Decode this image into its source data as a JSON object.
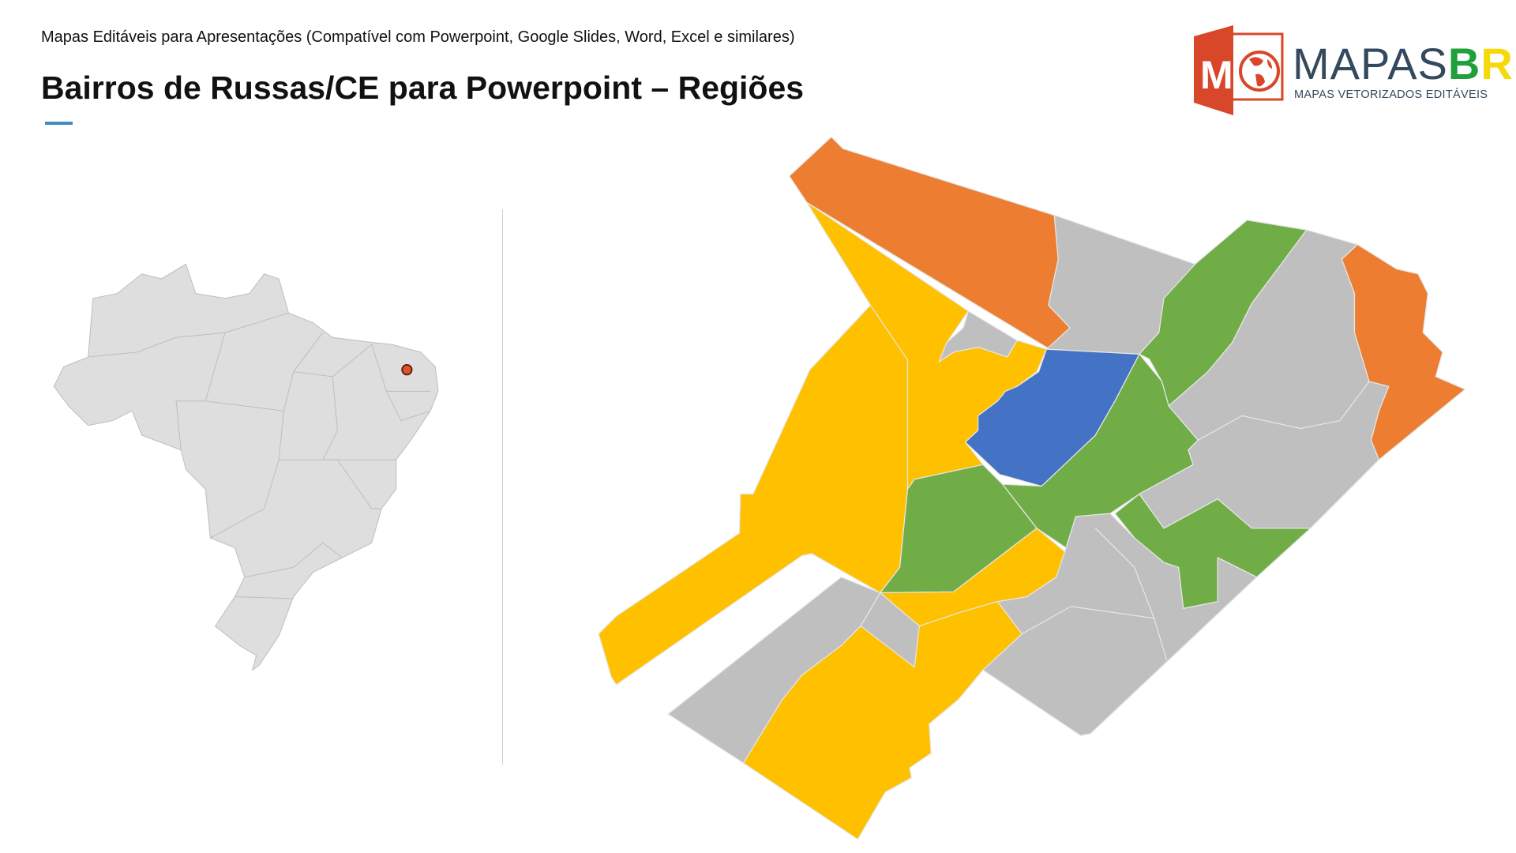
{
  "header": {
    "subtitle": "Mapas Editáveis para Apresentações (Compatível com Powerpoint, Google Slides, Word, Excel e similares)",
    "title": "Bairros de Russas/CE para Powerpoint – Regiões"
  },
  "logo": {
    "word_main": "MAPAS",
    "word_b": "B",
    "word_r": "R",
    "tagline": "MAPAS VETORIZADOS EDITÁVEIS",
    "icon": "presentation-globe-icon"
  },
  "colors": {
    "accent": "#3f8bbf",
    "orange": "#ed7d31",
    "yellow": "#ffc000",
    "blue": "#4472c4",
    "green": "#70ad47",
    "gray": "#bfbfbf",
    "brazil": "#dedede",
    "marker": "#e0522a"
  },
  "locator": {
    "country": "Brasil",
    "marker": "Russas/CE"
  }
}
